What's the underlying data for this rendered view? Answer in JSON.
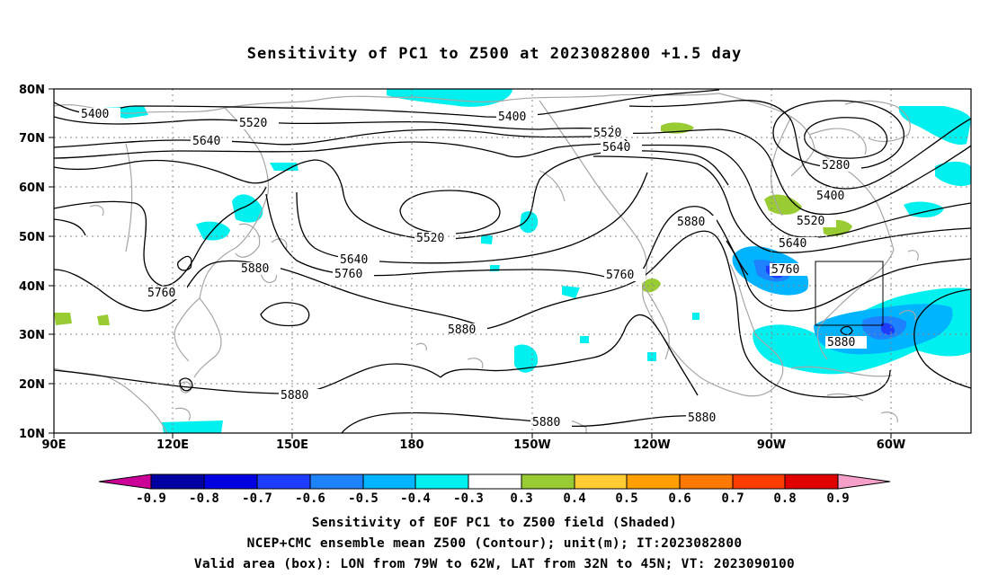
{
  "title": "Sensitivity of PC1 to Z500 at 2023082800 +1.5 day",
  "lat_labels": [
    "80N",
    "70N",
    "60N",
    "50N",
    "40N",
    "30N",
    "20N",
    "10N"
  ],
  "lon_labels": [
    "90E",
    "120E",
    "150E",
    "180",
    "150W",
    "120W",
    "90W",
    "60W"
  ],
  "contours": [
    {
      "label": "5400"
    },
    {
      "label": "5520"
    },
    {
      "label": "5640"
    },
    {
      "label": "5400"
    },
    {
      "label": "5520"
    },
    {
      "label": "5640"
    },
    {
      "label": "5280"
    },
    {
      "label": "5400"
    },
    {
      "label": "5520"
    },
    {
      "label": "5640"
    },
    {
      "label": "5880"
    },
    {
      "label": "5880"
    },
    {
      "label": "5640"
    },
    {
      "label": "5760"
    },
    {
      "label": "5760"
    },
    {
      "label": "5520"
    },
    {
      "label": "5760"
    },
    {
      "label": "5760"
    },
    {
      "label": "5880"
    },
    {
      "label": "5880"
    },
    {
      "label": "5880"
    },
    {
      "label": "5880"
    },
    {
      "label": "5880"
    }
  ],
  "colorbar": {
    "labels": [
      "-0.9",
      "-0.8",
      "-0.7",
      "-0.6",
      "-0.5",
      "-0.4",
      "-0.3",
      "0.3",
      "0.4",
      "0.5",
      "0.6",
      "0.7",
      "0.8",
      "0.9"
    ],
    "colors": [
      "#cc0099",
      "#0000a0",
      "#0000e0",
      "#1e3cff",
      "#1e82ff",
      "#00b4ff",
      "#00f0f0",
      "#ffffff",
      "#99cc33",
      "#ffcc33",
      "#ffa000",
      "#ff7800",
      "#ff3c00",
      "#e00000",
      "#f5a0c8"
    ]
  },
  "caption": {
    "line1": "Sensitivity of EOF PC1 to Z500 field (Shaded)",
    "line2": "NCEP+CMC ensemble mean Z500 (Contour); unit(m); IT:2023082800",
    "line3": "Valid area (box): LON from 79W to 62W, LAT from 32N to 45N; VT: 2023090100"
  }
}
